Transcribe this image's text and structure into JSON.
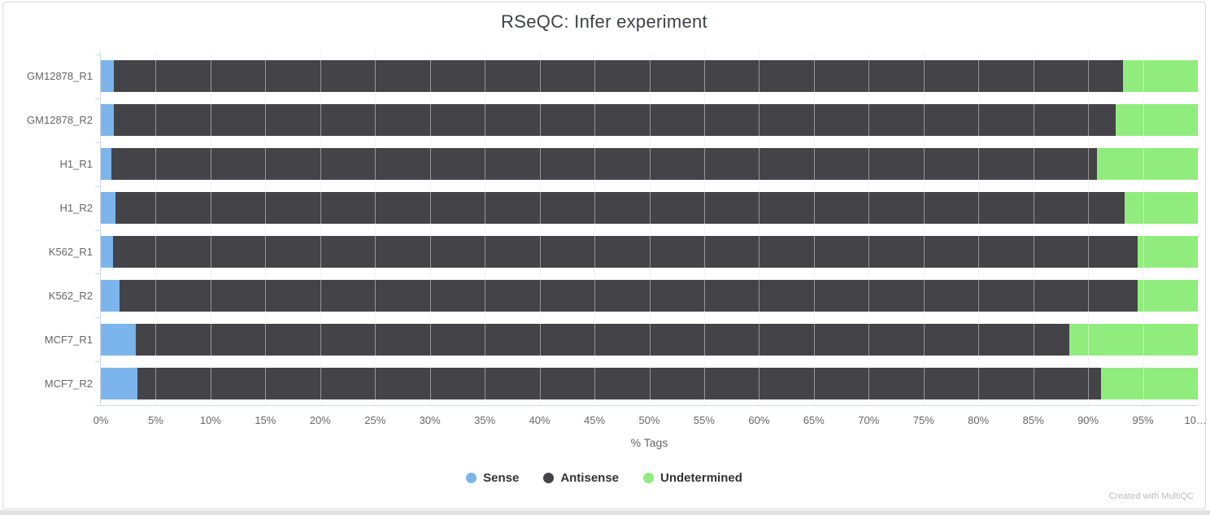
{
  "chart_data": {
    "type": "bar",
    "orientation": "horizontal_stacked",
    "title": "RSeQC: Infer experiment",
    "xlabel": "% Tags",
    "xlim": [
      0,
      100
    ],
    "grid": true,
    "legend_position": "bottom",
    "categories": [
      "GM12878_R1",
      "GM12878_R2",
      "H1_R1",
      "H1_R2",
      "K562_R1",
      "K562_R2",
      "MCF7_R1",
      "MCF7_R2"
    ],
    "series": [
      {
        "name": "Sense",
        "color": "#7cb5ec",
        "values": [
          1.2,
          1.2,
          1.0,
          1.3,
          1.1,
          1.7,
          3.2,
          3.3
        ]
      },
      {
        "name": "Antisense",
        "color": "#434348",
        "values": [
          92.0,
          91.3,
          89.8,
          92.0,
          93.4,
          92.8,
          85.1,
          87.9
        ]
      },
      {
        "name": "Undetermined",
        "color": "#90ed7d",
        "values": [
          6.8,
          7.5,
          9.2,
          6.7,
          5.5,
          5.5,
          11.7,
          8.8
        ]
      }
    ],
    "xticks": {
      "step": 5,
      "labels": [
        "0%",
        "5%",
        "10%",
        "15%",
        "20%",
        "25%",
        "30%",
        "35%",
        "40%",
        "45%",
        "50%",
        "55%",
        "60%",
        "65%",
        "70%",
        "75%",
        "80%",
        "85%",
        "90%",
        "95%",
        "10…"
      ]
    }
  },
  "page": {
    "watermark": "Created with MultiQC"
  },
  "colors": {
    "axis_line": "#ccd6eb",
    "gridline": "#ececec",
    "tick_label": "#666666",
    "title_text": "#3c4148",
    "legend_text": "#333333",
    "watermark_text": "#bcbcbc",
    "card_border": "#d9d9d9",
    "scroll_strip": "#e2e2e2"
  }
}
